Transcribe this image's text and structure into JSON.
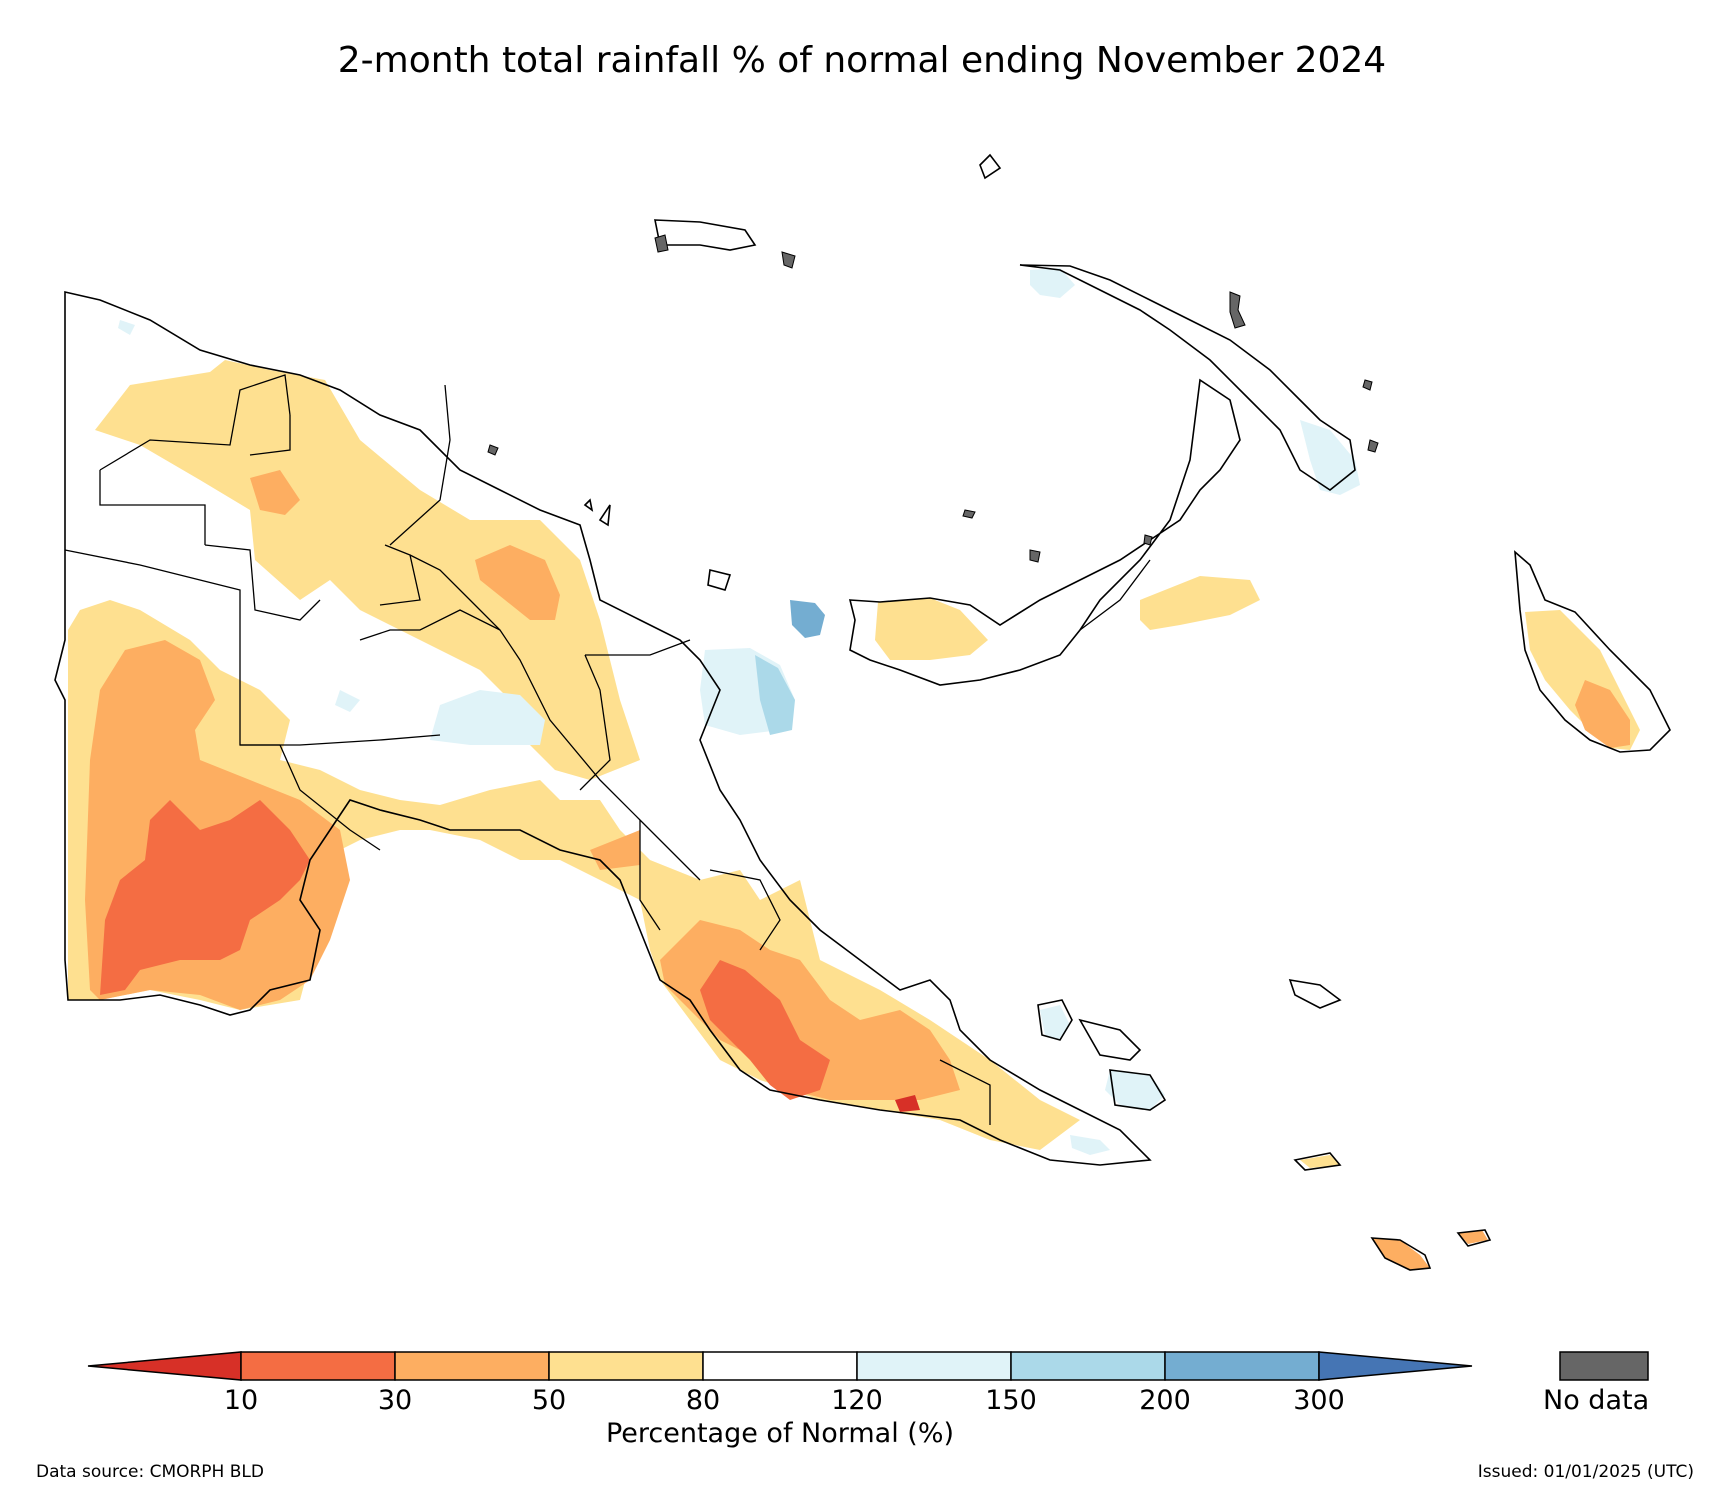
{
  "title": "2-month total rainfall % of normal ending November 2024",
  "legend": {
    "label": "Percentage of Normal (%)",
    "ticks": [
      "10",
      "30",
      "50",
      "80",
      "120",
      "150",
      "200",
      "300"
    ],
    "colors": {
      "below_10": "#d73027",
      "10_30": "#f46d43",
      "30_50": "#fdae61",
      "50_80": "#fee090",
      "80_120": "#ffffff",
      "120_150": "#e0f3f8",
      "150_200": "#abd9e9",
      "200_300": "#74add1",
      "above_300": "#4575b4"
    },
    "no_data_label": "No data",
    "no_data_color": "#666666"
  },
  "footer": {
    "source": "Data source: CMORPH BLD",
    "issued": "Issued: 01/01/2025 (UTC)"
  }
}
